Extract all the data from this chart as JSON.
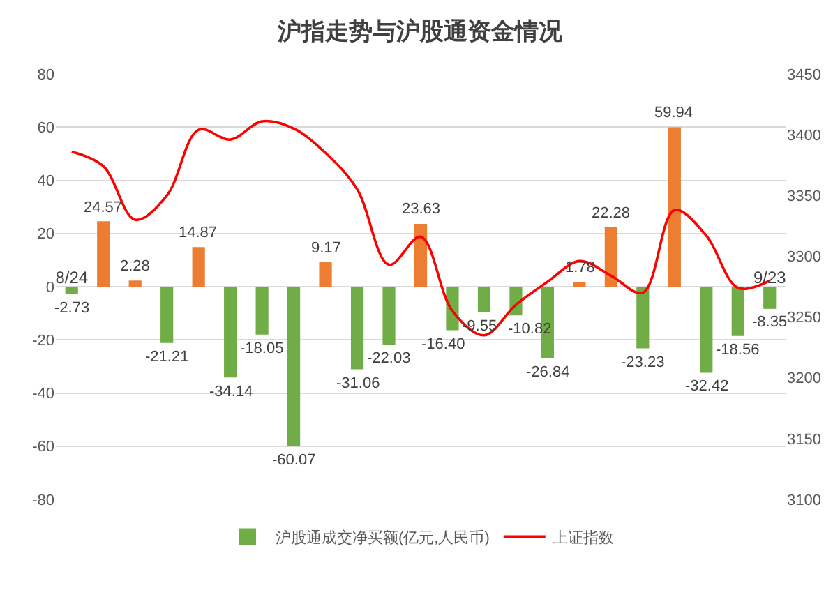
{
  "chart_data": {
    "type": "bar",
    "title": "沪指走势与沪股通资金情况",
    "categories": [
      "8/24",
      null,
      null,
      null,
      null,
      null,
      null,
      null,
      null,
      null,
      null,
      null,
      null,
      null,
      null,
      null,
      null,
      null,
      null,
      null,
      null,
      null,
      "9/23"
    ],
    "series": [
      {
        "name": "沪股通成交净买额(亿元,人民币)",
        "values": [
          -2.73,
          24.57,
          2.28,
          -21.21,
          14.87,
          -34.14,
          -18.05,
          -60.07,
          9.17,
          -31.06,
          -22.03,
          23.63,
          -16.4,
          -9.55,
          -10.82,
          -26.84,
          1.78,
          22.28,
          -23.23,
          59.94,
          -32.42,
          -18.56,
          -8.35
        ],
        "colors": [
          "#70ad47",
          "#ed7d31",
          "#ed7d31",
          "#70ad47",
          "#ed7d31",
          "#70ad47",
          "#70ad47",
          "#70ad47",
          "#ed7d31",
          "#70ad47",
          "#70ad47",
          "#ed7d31",
          "#70ad47",
          "#70ad47",
          "#70ad47",
          "#70ad47",
          "#ed7d31",
          "#ed7d31",
          "#70ad47",
          "#ed7d31",
          "#70ad47",
          "#70ad47",
          "#70ad47"
        ],
        "value_labels": [
          "-2.73",
          "24.57",
          "2.28",
          "-21.21",
          "14.87",
          "-34.14",
          "-18.05",
          "-60.07",
          "9.17",
          "-31.06",
          "-22.03",
          "23.63",
          "-16.40",
          "-9.55",
          "-10.82",
          "-26.84",
          "1.78",
          "22.28",
          "-23.23",
          "59.94",
          "-32.42",
          "-18.56",
          "-8.35"
        ]
      },
      {
        "name": "上证指数",
        "type": "line",
        "axis": "y2",
        "color": "#ff0000",
        "values": [
          3386,
          3374,
          3330,
          3350,
          3404,
          3396,
          3411,
          3405,
          3385,
          3355,
          3293,
          3316,
          3255,
          3235,
          3260,
          3279,
          3296,
          3284,
          3270,
          3338,
          3317,
          3274,
          3280
        ]
      }
    ],
    "ylim": [
      -80,
      80
    ],
    "yticks": [
      -80,
      -60,
      -40,
      -20,
      0,
      20,
      40,
      60,
      80
    ],
    "y2lim": [
      3100,
      3450
    ],
    "y2ticks": [
      3100,
      3150,
      3200,
      3250,
      3300,
      3350,
      3400,
      3450
    ],
    "grid": "y",
    "legend": "bottom"
  }
}
